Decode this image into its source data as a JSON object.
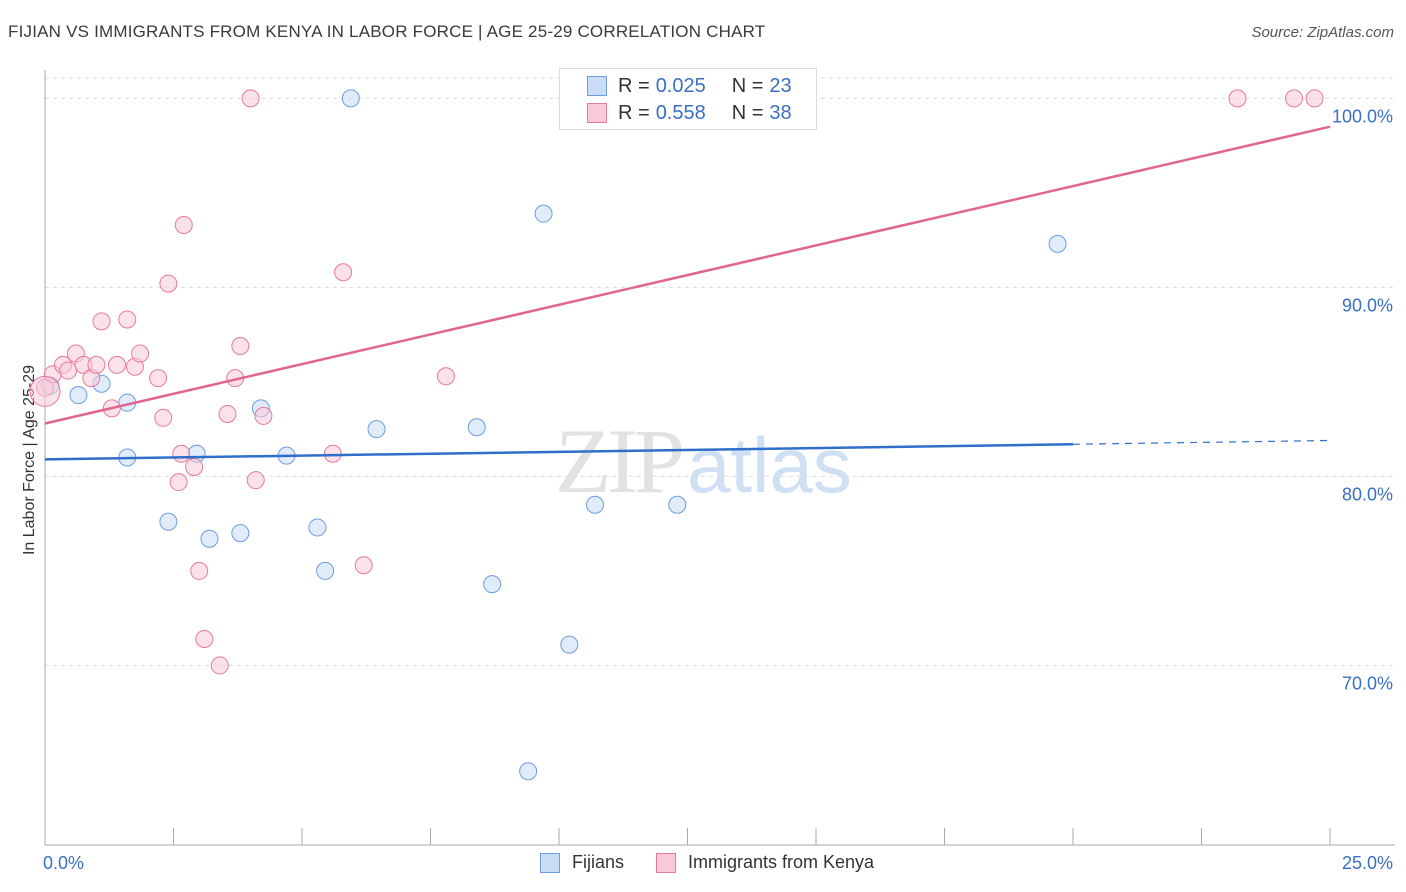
{
  "chart_data": {
    "type": "scatter",
    "title": "FIJIAN VS IMMIGRANTS FROM KENYA IN LABOR FORCE | AGE 25-29 CORRELATION CHART",
    "source": "Source: ZipAtlas.com",
    "ylabel": "In Labor Force | Age 25-29",
    "xlabel": "",
    "xlim": [
      0,
      25
    ],
    "ylim": [
      60.5,
      101.5
    ],
    "x_tick_labels": [
      "0.0%",
      "25.0%"
    ],
    "y_ticks": [
      70,
      80,
      90,
      100
    ],
    "y_tick_labels": [
      "70.0%",
      "80.0%",
      "90.0%",
      "100.0%"
    ],
    "grid": true,
    "watermark": {
      "zip": "ZIP",
      "atlas": "atlas"
    },
    "legend_top": [
      {
        "r_label": "R =",
        "r_value": "0.025",
        "n_label": "N =",
        "n_value": "23"
      },
      {
        "r_label": "R =",
        "r_value": "0.558",
        "n_label": "N =",
        "n_value": "38"
      }
    ],
    "series": [
      {
        "name": "Fijians",
        "color": "#6d9de0",
        "fill": "#c9dcf6",
        "points": [
          [
            0.1,
            84.8
          ],
          [
            0.65,
            84.3
          ],
          [
            1.1,
            84.9
          ],
          [
            1.6,
            83.9
          ],
          [
            1.6,
            81.0
          ],
          [
            2.4,
            77.6
          ],
          [
            2.95,
            81.2
          ],
          [
            3.2,
            76.7
          ],
          [
            3.8,
            77.0
          ],
          [
            4.2,
            83.6
          ],
          [
            4.7,
            81.1
          ],
          [
            5.3,
            77.3
          ],
          [
            5.45,
            75.0
          ],
          [
            5.95,
            100.0
          ],
          [
            6.45,
            82.5
          ],
          [
            8.4,
            82.6
          ],
          [
            8.7,
            74.3
          ],
          [
            9.4,
            64.4
          ],
          [
            9.7,
            93.9
          ],
          [
            10.2,
            71.1
          ],
          [
            10.7,
            78.5
          ],
          [
            12.3,
            78.5
          ],
          [
            19.7,
            92.3
          ]
        ],
        "trend": {
          "x0": 0,
          "y0": 80.9,
          "x1": 20.0,
          "y1": 81.7,
          "dash_x1": 25.0,
          "dash_y1": 81.9
        }
      },
      {
        "name": "Immigrants from Kenya",
        "color": "#e8799f",
        "fill": "#f8cad9",
        "points": [
          [
            0.0,
            84.7
          ],
          [
            0.15,
            85.4
          ],
          [
            0.35,
            85.9
          ],
          [
            0.45,
            85.6
          ],
          [
            0.6,
            86.5
          ],
          [
            0.75,
            85.9
          ],
          [
            0.9,
            85.2
          ],
          [
            1.0,
            85.9
          ],
          [
            1.1,
            88.2
          ],
          [
            1.4,
            85.9
          ],
          [
            1.3,
            83.6
          ],
          [
            1.6,
            88.3
          ],
          [
            1.75,
            85.8
          ],
          [
            1.85,
            86.5
          ],
          [
            2.2,
            85.2
          ],
          [
            2.3,
            83.1
          ],
          [
            2.4,
            90.2
          ],
          [
            2.6,
            79.7
          ],
          [
            2.65,
            81.2
          ],
          [
            2.7,
            93.3
          ],
          [
            2.9,
            80.5
          ],
          [
            3.0,
            75.0
          ],
          [
            3.1,
            71.4
          ],
          [
            3.4,
            70.0
          ],
          [
            3.55,
            83.3
          ],
          [
            3.7,
            85.2
          ],
          [
            3.8,
            86.9
          ],
          [
            4.0,
            100.0
          ],
          [
            4.1,
            79.8
          ],
          [
            4.25,
            83.2
          ],
          [
            5.6,
            81.2
          ],
          [
            5.8,
            90.8
          ],
          [
            6.2,
            75.3
          ],
          [
            7.8,
            85.3
          ],
          [
            23.2,
            100.0
          ],
          [
            24.3,
            100.0
          ],
          [
            24.7,
            100.0
          ],
          [
            0.0,
            84.5
          ]
        ],
        "trend": {
          "x0": 0,
          "y0": 82.8,
          "x1": 25.0,
          "y1": 98.5
        }
      }
    ]
  }
}
